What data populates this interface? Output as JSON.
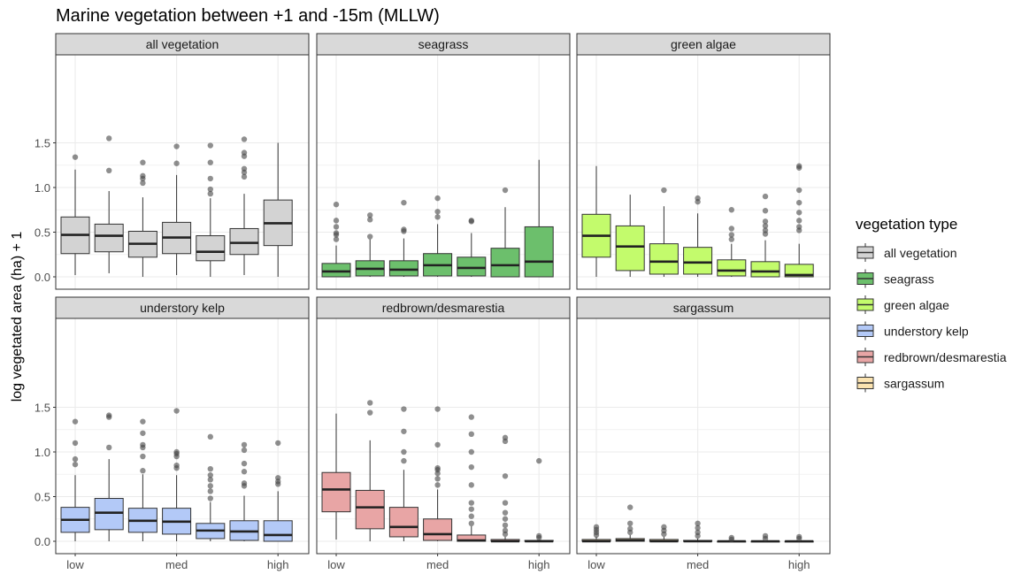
{
  "chart_data": {
    "type": "boxplot",
    "title": "Marine vegetation between +1 and -15m (MLLW)",
    "ylabel": "log vegetated area (ha) + 1",
    "xlabel": "",
    "ylim": [
      0,
      1.55
    ],
    "yticks": [
      "0.0",
      "0.5",
      "1.0",
      "1.5"
    ],
    "xtick_labels": [
      "low",
      "med",
      "high"
    ],
    "grid": true,
    "facet_layout": "2x3",
    "legend": {
      "title": "vegetation type",
      "placement": "right",
      "entries": [
        "all vegetation",
        "seagrass",
        "green algae",
        "understory kelp",
        "redbrown/desmarestia",
        "sargassum"
      ]
    },
    "panels": [
      {
        "name": "all vegetation",
        "color": "#d3d3d3",
        "boxes": [
          {
            "q1": 0.26,
            "median": 0.47,
            "q3": 0.67,
            "lo": 0.02,
            "hi": 1.2,
            "outliers": [
              1.34
            ]
          },
          {
            "q1": 0.28,
            "median": 0.46,
            "q3": 0.59,
            "lo": 0.04,
            "hi": 0.96,
            "outliers": [
              1.19,
              1.55
            ]
          },
          {
            "q1": 0.22,
            "median": 0.37,
            "q3": 0.51,
            "lo": 0.0,
            "hi": 0.89,
            "outliers": [
              1.05,
              1.1,
              1.13,
              1.28
            ]
          },
          {
            "q1": 0.26,
            "median": 0.44,
            "q3": 0.61,
            "lo": 0.02,
            "hi": 1.14,
            "outliers": [
              1.27,
              1.46
            ]
          },
          {
            "q1": 0.18,
            "median": 0.28,
            "q3": 0.46,
            "lo": 0.0,
            "hi": 0.88,
            "outliers": [
              0.93,
              0.98,
              1.1,
              1.28,
              1.47
            ]
          },
          {
            "q1": 0.25,
            "median": 0.38,
            "q3": 0.54,
            "lo": 0.02,
            "hi": 0.93,
            "outliers": [
              1.12,
              1.17,
              1.21,
              1.35,
              1.39,
              1.54
            ]
          },
          {
            "q1": 0.35,
            "median": 0.6,
            "q3": 0.86,
            "lo": 0.0,
            "hi": 1.5,
            "outliers": []
          }
        ]
      },
      {
        "name": "seagrass",
        "color": "#6cbf6c",
        "boxes": [
          {
            "q1": 0.0,
            "median": 0.06,
            "q3": 0.15,
            "lo": 0.0,
            "hi": 0.35,
            "outliers": [
              0.42,
              0.47,
              0.49,
              0.56,
              0.63,
              0.81
            ]
          },
          {
            "q1": 0.01,
            "median": 0.09,
            "q3": 0.18,
            "lo": 0.0,
            "hi": 0.42,
            "outliers": [
              0.45,
              0.64,
              0.69
            ]
          },
          {
            "q1": 0.01,
            "median": 0.08,
            "q3": 0.18,
            "lo": 0.0,
            "hi": 0.43,
            "outliers": [
              0.51,
              0.53,
              0.83
            ]
          },
          {
            "q1": 0.01,
            "median": 0.13,
            "q3": 0.26,
            "lo": 0.0,
            "hi": 0.59,
            "outliers": [
              0.67,
              0.73,
              0.88
            ]
          },
          {
            "q1": 0.01,
            "median": 0.1,
            "q3": 0.22,
            "lo": 0.0,
            "hi": 0.49,
            "outliers": [
              0.62,
              0.63
            ]
          },
          {
            "q1": 0.0,
            "median": 0.13,
            "q3": 0.32,
            "lo": 0.0,
            "hi": 0.78,
            "outliers": [
              0.97
            ]
          },
          {
            "q1": 0.0,
            "median": 0.17,
            "q3": 0.56,
            "lo": 0.0,
            "hi": 1.31,
            "outliers": []
          }
        ]
      },
      {
        "name": "green algae",
        "color": "#c3fb6c",
        "boxes": [
          {
            "q1": 0.22,
            "median": 0.46,
            "q3": 0.7,
            "lo": 0.0,
            "hi": 1.24,
            "outliers": []
          },
          {
            "q1": 0.07,
            "median": 0.34,
            "q3": 0.57,
            "lo": 0.0,
            "hi": 0.92,
            "outliers": []
          },
          {
            "q1": 0.03,
            "median": 0.17,
            "q3": 0.37,
            "lo": 0.0,
            "hi": 0.79,
            "outliers": [
              0.97
            ]
          },
          {
            "q1": 0.03,
            "median": 0.16,
            "q3": 0.33,
            "lo": 0.0,
            "hi": 0.71,
            "outliers": [
              0.84,
              0.88
            ]
          },
          {
            "q1": 0.01,
            "median": 0.07,
            "q3": 0.19,
            "lo": 0.0,
            "hi": 0.37,
            "outliers": [
              0.42,
              0.47,
              0.54,
              0.75
            ]
          },
          {
            "q1": 0.0,
            "median": 0.06,
            "q3": 0.17,
            "lo": 0.0,
            "hi": 0.41,
            "outliers": [
              0.48,
              0.52,
              0.57,
              0.62,
              0.74,
              0.9
            ]
          },
          {
            "q1": 0.0,
            "median": 0.02,
            "q3": 0.14,
            "lo": 0.0,
            "hi": 0.37,
            "outliers": [
              0.52,
              0.56,
              0.63,
              0.72,
              0.83,
              0.97,
              1.22,
              1.24
            ]
          }
        ]
      },
      {
        "name": "understory kelp",
        "color": "#b3c9f7",
        "boxes": [
          {
            "q1": 0.1,
            "median": 0.24,
            "q3": 0.38,
            "lo": 0.0,
            "hi": 0.74,
            "outliers": [
              0.86,
              0.92,
              1.1,
              1.34
            ]
          },
          {
            "q1": 0.13,
            "median": 0.32,
            "q3": 0.48,
            "lo": 0.0,
            "hi": 0.92,
            "outliers": [
              1.05,
              1.39,
              1.41
            ]
          },
          {
            "q1": 0.1,
            "median": 0.23,
            "q3": 0.37,
            "lo": 0.0,
            "hi": 0.75,
            "outliers": [
              0.79,
              0.95,
              1.05,
              1.08,
              1.21,
              1.34
            ]
          },
          {
            "q1": 0.08,
            "median": 0.22,
            "q3": 0.37,
            "lo": 0.0,
            "hi": 0.74,
            "outliers": [
              0.82,
              0.85,
              0.95,
              0.98,
              1.0,
              1.46
            ]
          },
          {
            "q1": 0.03,
            "median": 0.12,
            "q3": 0.2,
            "lo": 0.0,
            "hi": 0.44,
            "outliers": [
              0.48,
              0.56,
              0.62,
              0.69,
              0.74,
              0.81,
              1.17
            ]
          },
          {
            "q1": 0.01,
            "median": 0.11,
            "q3": 0.23,
            "lo": 0.0,
            "hi": 0.51,
            "outliers": [
              0.62,
              0.65,
              0.78,
              0.87,
              1.02,
              1.08
            ]
          },
          {
            "q1": 0.0,
            "median": 0.07,
            "q3": 0.23,
            "lo": 0.0,
            "hi": 0.56,
            "outliers": [
              0.64,
              0.67,
              0.71,
              1.1
            ]
          }
        ]
      },
      {
        "name": "redbrown/desmarestia",
        "color": "#e8a5a5",
        "boxes": [
          {
            "q1": 0.33,
            "median": 0.58,
            "q3": 0.77,
            "lo": 0.02,
            "hi": 1.43,
            "outliers": []
          },
          {
            "q1": 0.14,
            "median": 0.38,
            "q3": 0.57,
            "lo": 0.0,
            "hi": 1.13,
            "outliers": [
              1.44,
              1.55
            ]
          },
          {
            "q1": 0.05,
            "median": 0.16,
            "q3": 0.38,
            "lo": 0.0,
            "hi": 0.8,
            "outliers": [
              0.9,
              1.0,
              1.23,
              1.48
            ]
          },
          {
            "q1": 0.01,
            "median": 0.08,
            "q3": 0.25,
            "lo": 0.0,
            "hi": 0.58,
            "outliers": [
              0.63,
              0.7,
              0.76,
              0.8,
              0.82,
              1.08,
              1.48
            ]
          },
          {
            "q1": 0.0,
            "median": 0.01,
            "q3": 0.07,
            "lo": 0.0,
            "hi": 0.17,
            "outliers": [
              0.2,
              0.28,
              0.36,
              0.43,
              0.63,
              0.83,
              1.0,
              1.2,
              1.39
            ]
          },
          {
            "q1": 0.0,
            "median": 0.0,
            "q3": 0.02,
            "lo": 0.0,
            "hi": 0.05,
            "outliers": [
              0.08,
              0.12,
              0.18,
              0.25,
              0.32,
              0.43,
              0.73,
              1.12,
              1.16
            ]
          },
          {
            "q1": 0.0,
            "median": 0.0,
            "q3": 0.01,
            "lo": 0.0,
            "hi": 0.02,
            "outliers": [
              0.04,
              0.06,
              0.9
            ]
          }
        ]
      },
      {
        "name": "sargassum",
        "color": "#fbe3b0",
        "boxes": [
          {
            "q1": 0.0,
            "median": 0.0,
            "q3": 0.02,
            "lo": 0.0,
            "hi": 0.05,
            "outliers": [
              0.07,
              0.1,
              0.13,
              0.16
            ]
          },
          {
            "q1": 0.0,
            "median": 0.01,
            "q3": 0.03,
            "lo": 0.0,
            "hi": 0.07,
            "outliers": [
              0.1,
              0.14,
              0.2,
              0.38
            ]
          },
          {
            "q1": 0.0,
            "median": 0.0,
            "q3": 0.02,
            "lo": 0.0,
            "hi": 0.05,
            "outliers": [
              0.08,
              0.12,
              0.16
            ]
          },
          {
            "q1": 0.0,
            "median": 0.0,
            "q3": 0.01,
            "lo": 0.0,
            "hi": 0.03,
            "outliers": [
              0.06,
              0.1,
              0.15,
              0.2
            ]
          },
          {
            "q1": 0.0,
            "median": 0.0,
            "q3": 0.0,
            "lo": 0.0,
            "hi": 0.01,
            "outliers": [
              0.02,
              0.04
            ]
          },
          {
            "q1": 0.0,
            "median": 0.0,
            "q3": 0.0,
            "lo": 0.0,
            "hi": 0.01,
            "outliers": [
              0.03,
              0.06
            ]
          },
          {
            "q1": 0.0,
            "median": 0.0,
            "q3": 0.0,
            "lo": 0.0,
            "hi": 0.01,
            "outliers": [
              0.03,
              0.05
            ]
          }
        ]
      }
    ]
  }
}
